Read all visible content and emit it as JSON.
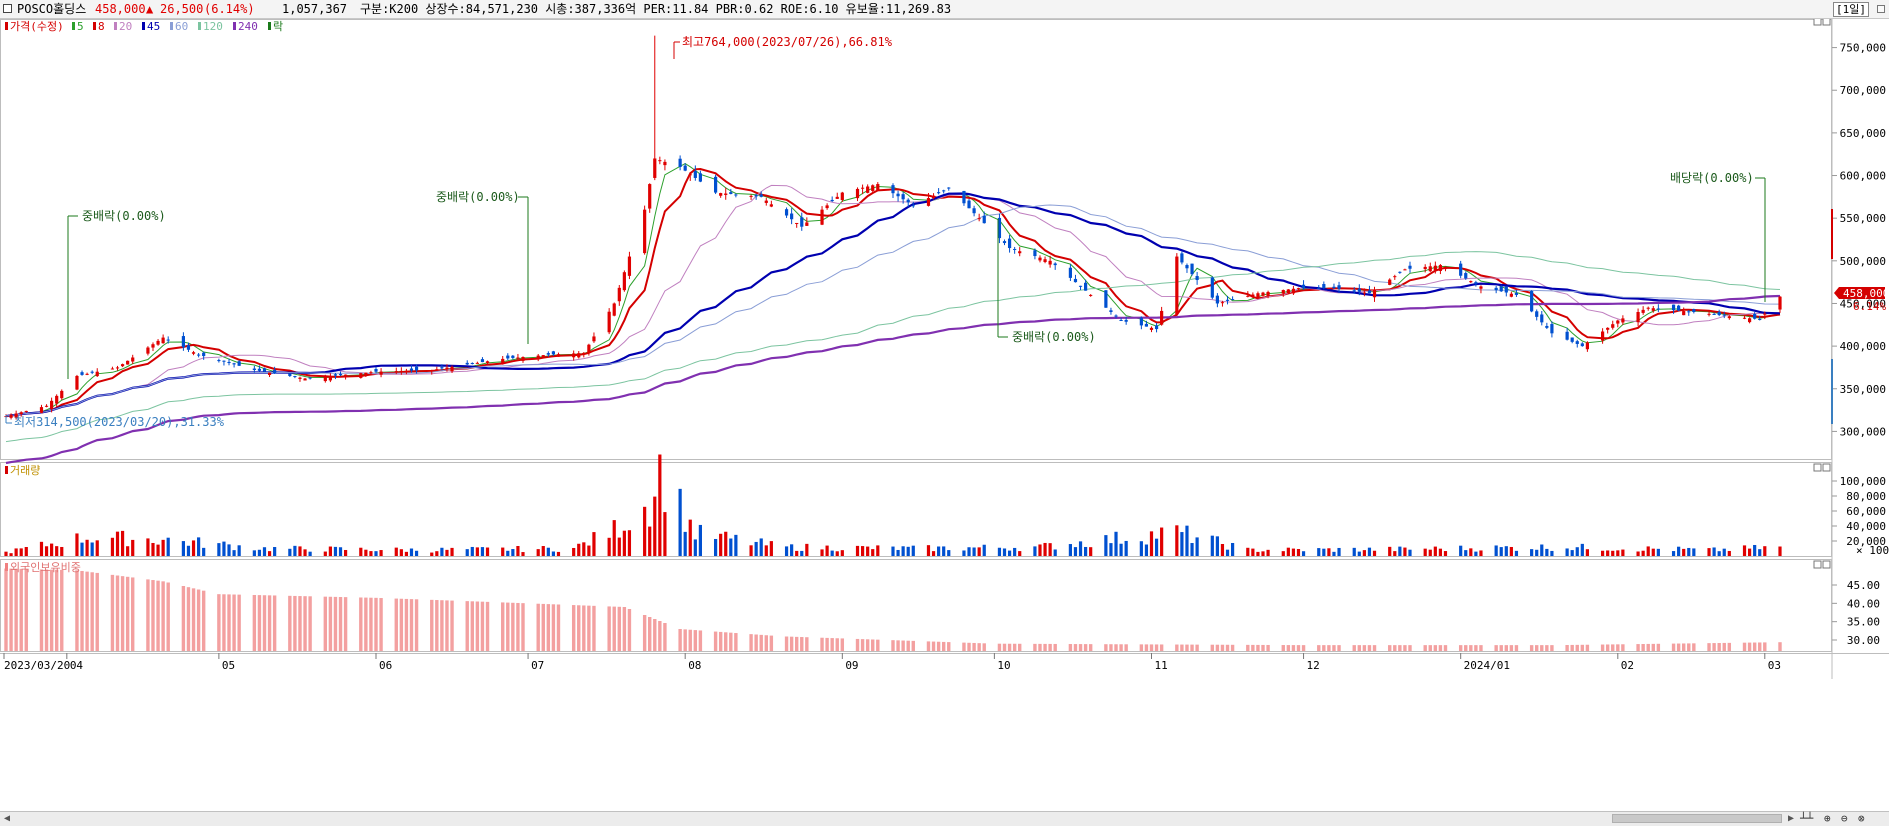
{
  "header": {
    "name": "POSCO홀딩스",
    "price": "458,000",
    "change_arrow": "▲",
    "change": "26,500",
    "change_pct": "(6.14%)",
    "volume": "1,057,367",
    "info": "구분:K200 상장수:84,571,230 시총:387,336억 PER:11.84 PBR:0.62 ROE:6.10 유보율:11,269.83",
    "period": "[1일]",
    "up_color": "#e00000",
    "down_color": "#0050d0"
  },
  "price_panel": {
    "legend": {
      "title": "가격(수정)",
      "ma": [
        {
          "label": "5",
          "color": "#2ca02c"
        },
        {
          "label": "8",
          "color": "#d40000"
        },
        {
          "label": "20",
          "color": "#c080c0"
        },
        {
          "label": "45",
          "color": "#0000b0"
        },
        {
          "label": "60",
          "color": "#8a9ed6"
        },
        {
          "label": "120",
          "color": "#7cc4a0"
        },
        {
          "label": "240",
          "color": "#8030b0"
        }
      ],
      "extra": "락"
    },
    "y_ticks": [
      "750,000",
      "700,000",
      "650,000",
      "600,000",
      "550,000",
      "500,000",
      "450,000",
      "400,000",
      "350,000",
      "300,000"
    ],
    "current_tag": "458,000",
    "current_pct": "6.14%",
    "annotations": {
      "high": "최고764,000(2023/07/26),66.81%",
      "low": "최저314,500(2023/03/20),31.33%",
      "div1": "중배락(0.00%)",
      "div2": "중배락(0.00%)",
      "div3": "중배락(0.00%)",
      "div4": "배당락(0.00%)"
    }
  },
  "volume_panel": {
    "title": "거래량",
    "y_ticks": [
      "100,000",
      "80,000",
      "60,000",
      "40,000",
      "20,000"
    ],
    "unit": "× 100"
  },
  "foreign_panel": {
    "title": "외국인보유비중",
    "y_ticks": [
      "45.00",
      "40.00",
      "35.00",
      "30.00"
    ]
  },
  "x_labels": [
    "2023/03/20",
    "04",
    "05",
    "06",
    "07",
    "08",
    "09",
    "10",
    "11",
    "12",
    "2024/01",
    "02",
    "03"
  ],
  "chart_data": {
    "type": "candlestick",
    "title": "POSCO홀딩스",
    "x_range": [
      "2023/03/20",
      "2024/03/04"
    ],
    "y_range": [
      270000,
      780000
    ],
    "price_anchors": [
      [
        "2023/03/20",
        318000
      ],
      [
        "2023/03/28",
        330000
      ],
      [
        "2023/04/03",
        365000
      ],
      [
        "2023/04/11",
        375000
      ],
      [
        "2023/04/20",
        410000
      ],
      [
        "2023/04/27",
        390000
      ],
      [
        "2023/05/08",
        372000
      ],
      [
        "2023/05/18",
        362000
      ],
      [
        "2023/06/01",
        370000
      ],
      [
        "2023/06/12",
        372000
      ],
      [
        "2023/06/26",
        385000
      ],
      [
        "2023/07/05",
        390000
      ],
      [
        "2023/07/12",
        392000
      ],
      [
        "2023/07/18",
        450000
      ],
      [
        "2023/07/24",
        560000
      ],
      [
        "2023/07/26",
        620000
      ],
      [
        "2023/07/31",
        610000
      ],
      [
        "2023/08/07",
        580000
      ],
      [
        "2023/08/16",
        575000
      ],
      [
        "2023/08/24",
        540000
      ],
      [
        "2023/09/01",
        580000
      ],
      [
        "2023/09/08",
        590000
      ],
      [
        "2023/09/15",
        565000
      ],
      [
        "2023/09/22",
        585000
      ],
      [
        "2023/10/04",
        515000
      ],
      [
        "2023/10/12",
        500000
      ],
      [
        "2023/10/20",
        460000
      ],
      [
        "2023/10/26",
        430000
      ],
      [
        "2023/11/02",
        420000
      ],
      [
        "2023/11/06",
        505000
      ],
      [
        "2023/11/14",
        450000
      ],
      [
        "2023/11/22",
        462000
      ],
      [
        "2023/11/30",
        468000
      ],
      [
        "2023/12/07",
        468000
      ],
      [
        "2023/12/14",
        462000
      ],
      [
        "2023/12/21",
        490000
      ],
      [
        "2023/12/28",
        495000
      ],
      [
        "2024/01/05",
        470000
      ],
      [
        "2024/01/12",
        460000
      ],
      [
        "2024/01/19",
        415000
      ],
      [
        "2024/01/25",
        400000
      ],
      [
        "2024/02/01",
        430000
      ],
      [
        "2024/02/07",
        445000
      ],
      [
        "2024/02/16",
        440000
      ],
      [
        "2024/02/23",
        435000
      ],
      [
        "2024/02/29",
        431500
      ],
      [
        "2024/03/04",
        458000
      ]
    ],
    "volume_anchors": [
      [
        "2023/03/20",
        5
      ],
      [
        "2023/04/05",
        25
      ],
      [
        "2023/04/20",
        22
      ],
      [
        "2023/05/10",
        10
      ],
      [
        "2023/06/10",
        8
      ],
      [
        "2023/07/10",
        10
      ],
      [
        "2023/07/18",
        35
      ],
      [
        "2023/07/25",
        70
      ],
      [
        "2023/07/27",
        115
      ],
      [
        "2023/08/03",
        30
      ],
      [
        "2023/08/20",
        12
      ],
      [
        "2023/09/15",
        10
      ],
      [
        "2023/10/10",
        12
      ],
      [
        "2023/11/06",
        32
      ],
      [
        "2023/11/20",
        8
      ],
      [
        "2023/12/20",
        9
      ],
      [
        "2024/01/20",
        12
      ],
      [
        "2024/02/20",
        8
      ],
      [
        "2024/03/04",
        12
      ]
    ],
    "foreign_anchors": [
      [
        "2023/03/20",
        49.5
      ],
      [
        "2023/04/03",
        49
      ],
      [
        "2023/04/20",
        46
      ],
      [
        "2023/05/01",
        42.5
      ],
      [
        "2023/06/01",
        41.5
      ],
      [
        "2023/07/01",
        40
      ],
      [
        "2023/07/20",
        39
      ],
      [
        "2023/07/31",
        33
      ],
      [
        "2023/08/20",
        31
      ],
      [
        "2023/10/01",
        29
      ],
      [
        "2023/12/01",
        28.6
      ],
      [
        "2024/01/20",
        28.6
      ],
      [
        "2024/03/04",
        29.4
      ]
    ],
    "ylabel": "",
    "xlabel": ""
  }
}
